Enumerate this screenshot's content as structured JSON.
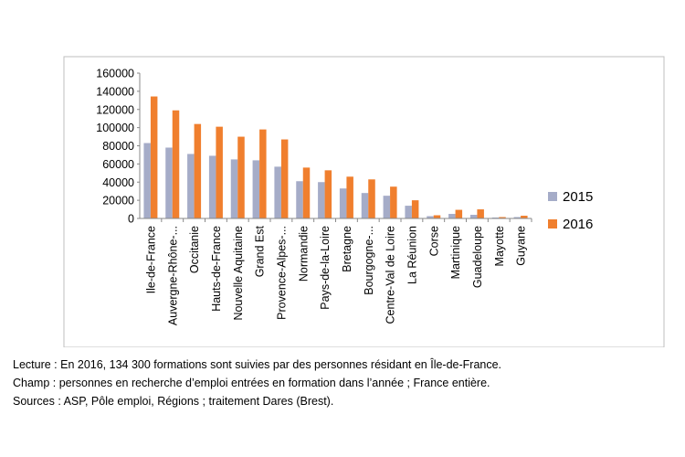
{
  "chart_data": {
    "type": "bar",
    "categories": [
      "Ile-de-France",
      "Auvergne-Rhône-...",
      "Occitanie",
      "Hauts-de-France",
      "Nouvelle Aquitaine",
      "Grand Est",
      "Provence-Alpes-...",
      "Normandie",
      "Pays-de-la-Loire",
      "Bretagne",
      "Bourgogne-...",
      "Centre-Val de Loire",
      "La Réunion",
      "Corse",
      "Martinique",
      "Guadeloupe",
      "Mayotte",
      "Guyane"
    ],
    "series": [
      {
        "name": "2015",
        "color": "#A5ACC8",
        "values": [
          83000,
          78000,
          71000,
          69000,
          65000,
          64000,
          57000,
          41000,
          40000,
          33000,
          28000,
          25000,
          14000,
          2500,
          5000,
          4000,
          1000,
          1500
        ]
      },
      {
        "name": "2016",
        "color": "#F07F2E",
        "values": [
          134300,
          119000,
          104000,
          101000,
          90000,
          98000,
          87000,
          56000,
          53000,
          46000,
          43000,
          35000,
          20000,
          3500,
          9500,
          10000,
          1500,
          3000
        ]
      }
    ],
    "ylim": [
      0,
      160000
    ],
    "yticks": [
      "0",
      "20000",
      "40000",
      "60000",
      "80000",
      "100000",
      "120000",
      "140000",
      "160000"
    ],
    "legend_position": "right",
    "grid": false
  },
  "notes": {
    "lecture": "Lecture : En 2016, 134 300 formations sont suivies par des personnes résidant en Île-de-France.",
    "champ": "Champ : personnes en recherche d’emploi entrées en formation dans l’année ; France entière.",
    "sources": "Sources : ASP, Pôle emploi, Régions ; traitement Dares (Brest)."
  }
}
